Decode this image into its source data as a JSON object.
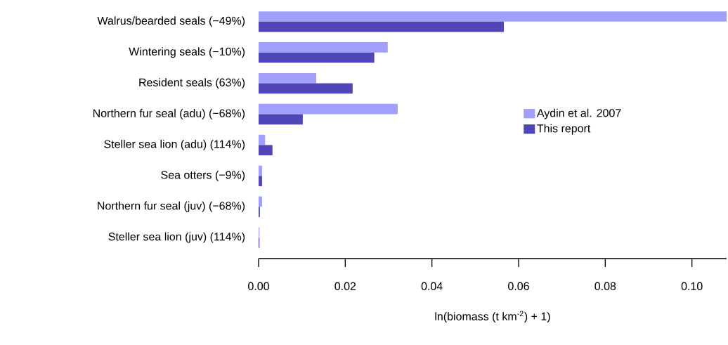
{
  "chart_data": {
    "type": "bar",
    "orientation": "horizontal",
    "xlabel": "ln(biomass (t km$^{-2}$) + 1)",
    "categories": [
      "Walrus/bearded seals (−49%)",
      "Wintering seals (−10%)",
      "Resident seals (63%)",
      "Northern fur seal (adu) (−68%)",
      "Steller sea lion (adu) (114%)",
      "Sea otters (−9%)",
      "Northern fur seal (juv) (−68%)",
      "Steller sea lion (juv) (114%)"
    ],
    "series": [
      {
        "name": "Aydin et al. 2007",
        "color": "#a0a0fc",
        "values": [
          0.108,
          0.0298,
          0.0133,
          0.0321,
          0.0015,
          0.0008,
          0.0008,
          0.0002
        ]
      },
      {
        "name": "This report",
        "color": "#5046b8",
        "values": [
          0.0566,
          0.0267,
          0.0217,
          0.0102,
          0.0032,
          0.0008,
          0.0003,
          0.0002
        ]
      }
    ],
    "xlim": [
      0,
      0.108
    ],
    "xticks": [
      {
        "value": 0,
        "label": "0.00"
      },
      {
        "value": 0.02,
        "label": "0.02"
      },
      {
        "value": 0.04,
        "label": "0.04"
      },
      {
        "value": 0.06,
        "label": "0.06"
      },
      {
        "value": 0.08,
        "label": "0.08"
      },
      {
        "value": 0.1,
        "label": "0.10"
      }
    ],
    "grid": false,
    "legend": "right"
  }
}
